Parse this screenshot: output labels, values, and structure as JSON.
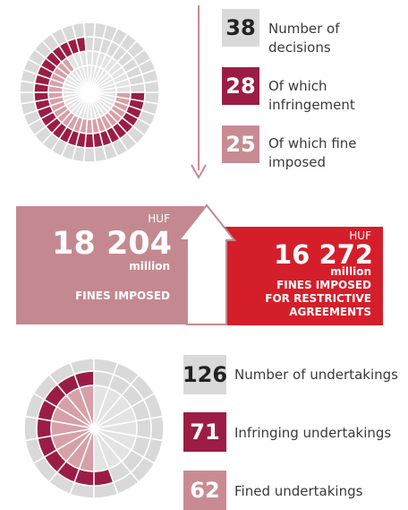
{
  "decisions": [
    {
      "value": 38,
      "label": "Number of decisions"
    },
    {
      "value": 28,
      "label": "Of which infringement"
    },
    {
      "value": 25,
      "label": "Of which fine imposed"
    }
  ],
  "fines": {
    "total": {
      "currency": "HUF",
      "amount": "18 204",
      "unit": "million",
      "label": "FINES IMPOSED"
    },
    "restrictive": {
      "currency": "HUF",
      "amount": "16 272",
      "unit": "million",
      "label": "FINES IMPOSED FOR RESTRICTIVE AGREEMENTS"
    }
  },
  "undertakings": [
    {
      "value": 126,
      "label": "Number of undertakings"
    },
    {
      "value": 71,
      "label": "Infringing undertakings"
    },
    {
      "value": 62,
      "label": "Fined undertakings"
    }
  ]
}
